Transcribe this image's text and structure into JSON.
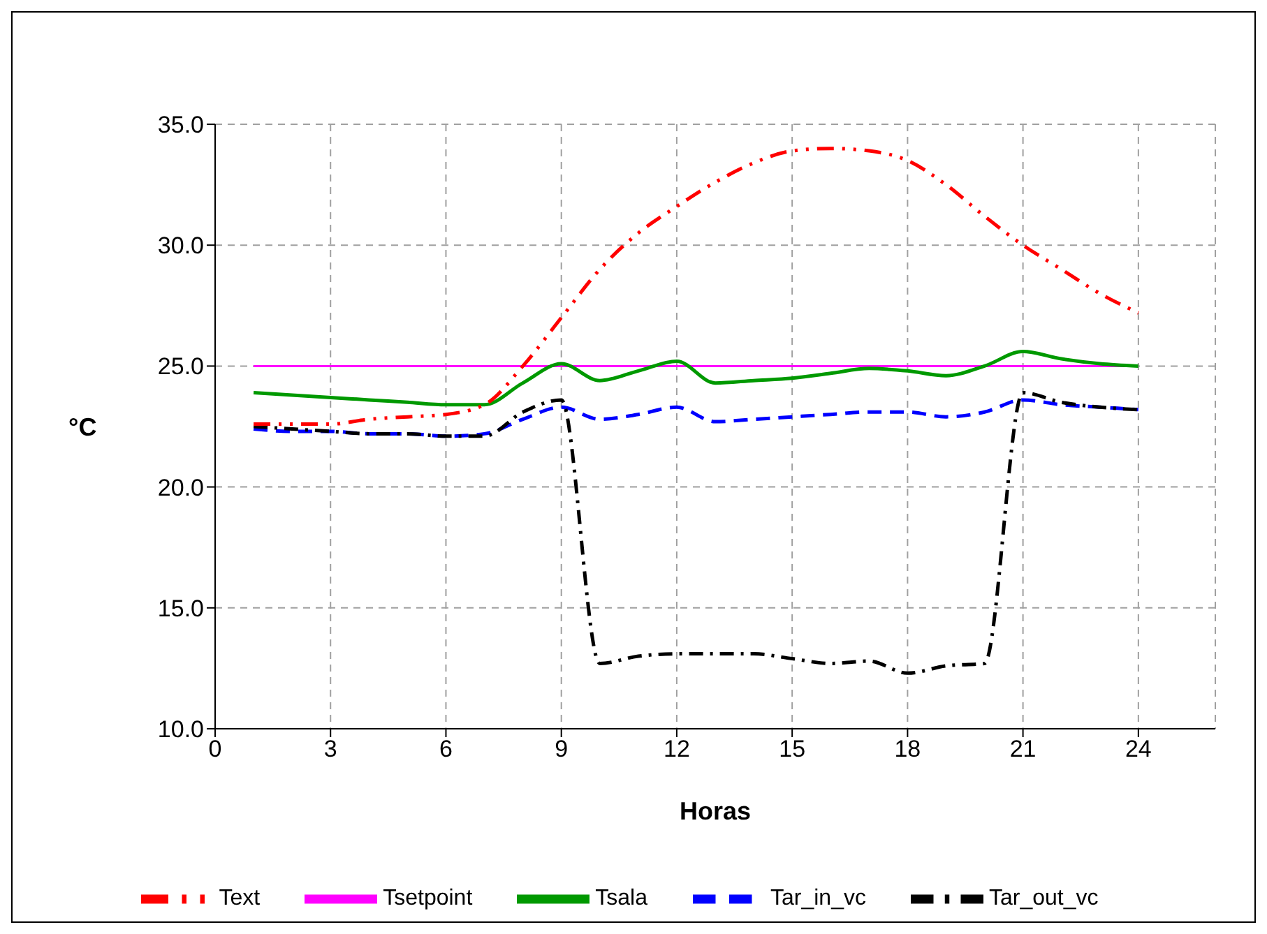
{
  "chart_data": {
    "type": "line",
    "xlabel": "Horas",
    "ylabel": "°C",
    "x": [
      1,
      2,
      3,
      4,
      5,
      6,
      7,
      8,
      9,
      10,
      11,
      12,
      13,
      14,
      15,
      16,
      17,
      18,
      19,
      20,
      21,
      22,
      23,
      24
    ],
    "xlim": [
      0,
      26
    ],
    "xticks": [
      0,
      3,
      6,
      9,
      12,
      15,
      18,
      21,
      24
    ],
    "ylim": [
      10,
      35
    ],
    "yticks": [
      {
        "value": 10,
        "label": "10.0"
      },
      {
        "value": 15,
        "label": "15.0"
      },
      {
        "value": 20,
        "label": "20.0"
      },
      {
        "value": 25,
        "label": "25.0"
      },
      {
        "value": 30,
        "label": "30.0"
      },
      {
        "value": 35,
        "label": "35.0"
      }
    ],
    "grid": true,
    "legend": "bottom",
    "marker": "none",
    "series": [
      {
        "name": "Text",
        "color": "#ff0000",
        "line_style": "dashdotdot",
        "values": [
          22.6,
          22.6,
          22.6,
          22.8,
          22.9,
          23.0,
          23.4,
          25.0,
          27.0,
          29.0,
          30.5,
          31.6,
          32.6,
          33.4,
          33.9,
          34.0,
          33.9,
          33.5,
          32.5,
          31.2,
          30.0,
          29.0,
          28.0,
          27.2
        ]
      },
      {
        "name": "Tsetpoint",
        "color": "#ff00ff",
        "line_style": "solid",
        "values": [
          25,
          25,
          25,
          25,
          25,
          25,
          25,
          25,
          25,
          25,
          25,
          25,
          25,
          25,
          25,
          25,
          25,
          25,
          25,
          25,
          25,
          25,
          25,
          25
        ]
      },
      {
        "name": "Tsala",
        "color": "#009900",
        "line_style": "solid",
        "values": [
          23.9,
          23.8,
          23.7,
          23.6,
          23.5,
          23.4,
          23.4,
          24.3,
          25.1,
          24.4,
          24.8,
          25.2,
          24.3,
          24.4,
          24.5,
          24.7,
          24.9,
          24.8,
          24.6,
          25.0,
          25.6,
          25.3,
          25.1,
          25.0
        ]
      },
      {
        "name": "Tar_in_vc",
        "color": "#0000ff",
        "line_style": "dashed",
        "values": [
          22.4,
          22.3,
          22.3,
          22.2,
          22.2,
          22.1,
          22.2,
          22.8,
          23.3,
          22.8,
          23.0,
          23.3,
          22.7,
          22.8,
          22.9,
          23.0,
          23.1,
          23.1,
          22.9,
          23.1,
          23.6,
          23.4,
          23.3,
          23.2
        ]
      },
      {
        "name": "Tar_out_vc",
        "color": "#000000",
        "line_style": "dashdot",
        "values": [
          22.5,
          22.4,
          22.3,
          22.2,
          22.2,
          22.1,
          22.1,
          23.1,
          23.6,
          12.7,
          13.0,
          13.1,
          13.1,
          13.1,
          12.9,
          12.7,
          12.8,
          12.3,
          12.6,
          12.7,
          23.9,
          23.5,
          23.3,
          23.2
        ]
      }
    ]
  }
}
